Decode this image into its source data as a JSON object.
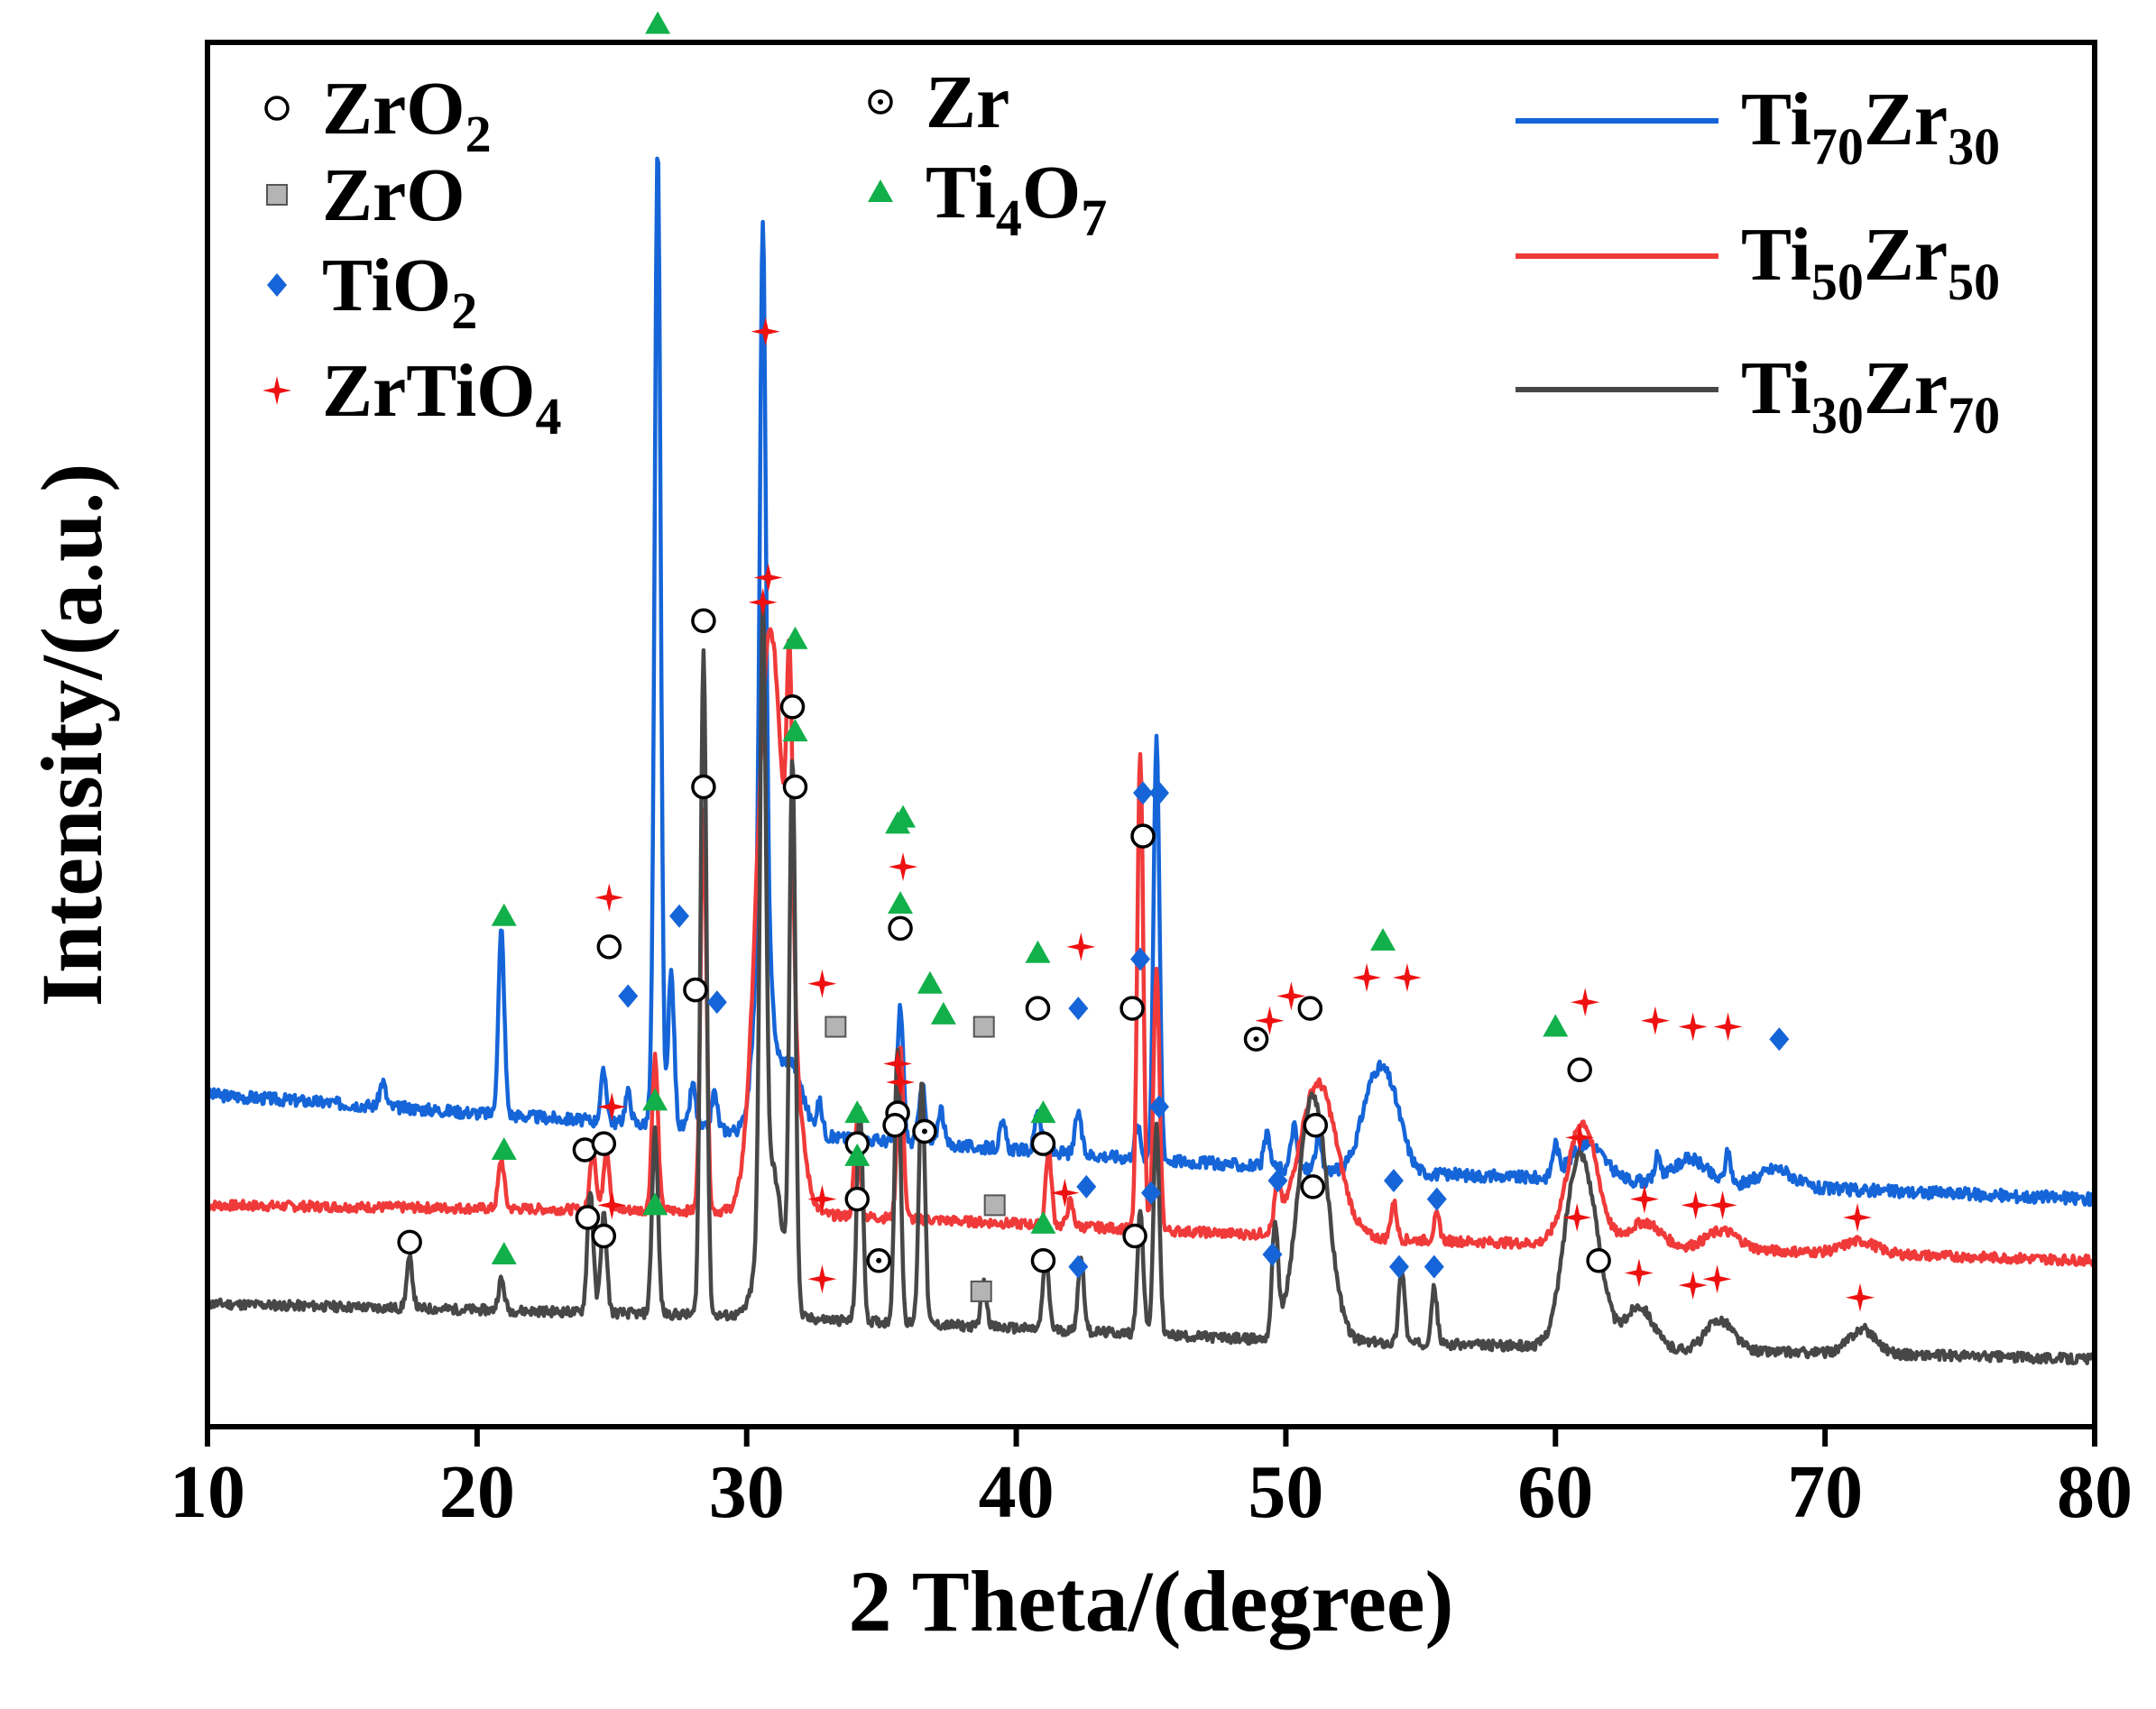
{
  "chart_data": {
    "type": "line",
    "title": "",
    "xlabel": "2 Theta/(degree)",
    "ylabel": "Intensity/(a.u.)",
    "xlim": [
      10,
      80
    ],
    "xticks": [
      10,
      20,
      30,
      40,
      50,
      60,
      70,
      80
    ],
    "grid": false,
    "y_units": "arbitrary units (vertically offset traces)",
    "legend_lines": [
      {
        "base": "Ti",
        "n1": "70",
        "el2": "Zr",
        "n2": "30",
        "color": "#1565d8"
      },
      {
        "base": "Ti",
        "n1": "50",
        "el2": "Zr",
        "n2": "50",
        "color": "#f03a3a"
      },
      {
        "base": "Ti",
        "n1": "30",
        "el2": "Zr",
        "n2": "70",
        "color": "#474747"
      }
    ],
    "phase_legend": [
      {
        "symbol": "circle",
        "formula": "ZrO",
        "sub": "2",
        "color": "#000000"
      },
      {
        "symbol": "square",
        "formula": "ZrO",
        "sub": "",
        "color": "#a0a0a0"
      },
      {
        "symbol": "diamond",
        "formula": "TiO",
        "sub": "2",
        "color": "#1565d8"
      },
      {
        "symbol": "cross",
        "formula": "ZrTiO",
        "sub": "4",
        "color": "#ee1111"
      },
      {
        "symbol": "dotcircle",
        "formula": "Zr",
        "sub": "",
        "color": "#000000"
      },
      {
        "symbol": "triangle",
        "formula": "Ti",
        "mid": "4",
        "formula2": "O",
        "sub": "7",
        "color": "#12b04a"
      }
    ],
    "series": [
      {
        "name": "Ti70Zr30",
        "color": "#1565d8",
        "baseline": [
          [
            10,
            54
          ],
          [
            30,
            48
          ],
          [
            50,
            42
          ],
          [
            80,
            37
          ]
        ],
        "broad": [
          [
            30.6,
            0.3,
            35
          ],
          [
            31.6,
            0.45,
            12
          ],
          [
            53.2,
            0.45,
            12
          ],
          [
            53.9,
            0.45,
            11
          ],
          [
            61.2,
            0.6,
            6
          ],
          [
            65.0,
            0.6,
            4
          ],
          [
            68.2,
            0.6,
            3
          ]
        ],
        "peaks": [
          [
            16.5,
            4
          ],
          [
            20.9,
            30
          ],
          [
            24.7,
            8
          ],
          [
            25.6,
            5
          ],
          [
            26.5,
            4
          ],
          [
            26.7,
            158
          ],
          [
            27.2,
            25
          ],
          [
            28.0,
            7
          ],
          [
            28.8,
            6
          ],
          [
            30.6,
            112
          ],
          [
            32.7,
            5
          ],
          [
            35.7,
            22
          ],
          [
            36.5,
            10
          ],
          [
            37.2,
            6
          ],
          [
            39.5,
            4
          ],
          [
            40.8,
            7
          ],
          [
            42.3,
            7
          ],
          [
            44.5,
            5
          ],
          [
            45.2,
            68
          ],
          [
            49.3,
            5
          ],
          [
            50.3,
            7
          ],
          [
            51.2,
            5
          ],
          [
            60.0,
            5
          ],
          [
            63.8,
            4
          ],
          [
            66.4,
            5
          ]
        ],
        "noise_seed": 3,
        "noise_amp": 1.0
      },
      {
        "name": "Ti50Zr50",
        "color": "#f03a3a",
        "baseline": [
          [
            10,
            36
          ],
          [
            30,
            35
          ],
          [
            50,
            31
          ],
          [
            80,
            27
          ]
        ],
        "broad": [
          [
            30.8,
            0.45,
            85
          ],
          [
            31.5,
            0.45,
            28
          ],
          [
            51.2,
            0.7,
            25
          ],
          [
            61.0,
            0.55,
            20
          ],
          [
            63.3,
            0.6,
            4
          ],
          [
            66.2,
            0.6,
            3
          ],
          [
            71.3,
            0.6,
            2
          ]
        ],
        "peaks": [
          [
            20.9,
            8
          ],
          [
            24.3,
            10
          ],
          [
            24.8,
            10
          ],
          [
            26.6,
            25
          ],
          [
            28.4,
            65
          ],
          [
            31.6,
            48
          ],
          [
            34.1,
            15
          ],
          [
            35.7,
            28
          ],
          [
            41.2,
            12
          ],
          [
            42.0,
            4
          ],
          [
            44.6,
            78
          ],
          [
            45.2,
            42
          ],
          [
            49.7,
            7
          ],
          [
            54.0,
            6
          ],
          [
            55.6,
            4
          ]
        ],
        "noise_seed": 7,
        "noise_amp": 0.8
      },
      {
        "name": "Ti30Zr70",
        "color": "#474747",
        "baseline": [
          [
            10,
            20
          ],
          [
            30,
            18
          ],
          [
            50,
            14
          ],
          [
            80,
            11
          ]
        ],
        "broad": [
          [
            30.9,
            0.4,
            25
          ],
          [
            51.0,
            0.55,
            40
          ],
          [
            60.8,
            0.5,
            28
          ],
          [
            61.5,
            0.45,
            10
          ],
          [
            63.1,
            0.5,
            7
          ],
          [
            66.1,
            0.5,
            5
          ],
          [
            71.4,
            0.5,
            4
          ]
        ],
        "peaks": [
          [
            17.5,
            8
          ],
          [
            20.9,
            5
          ],
          [
            24.2,
            20
          ],
          [
            24.7,
            16
          ],
          [
            26.6,
            30
          ],
          [
            28.4,
            108
          ],
          [
            30.6,
            98
          ],
          [
            31.7,
            88
          ],
          [
            34.2,
            35
          ],
          [
            35.6,
            45
          ],
          [
            36.5,
            40
          ],
          [
            38.8,
            7
          ],
          [
            41.1,
            12
          ],
          [
            42.4,
            12
          ],
          [
            44.6,
            20
          ],
          [
            45.2,
            34
          ],
          [
            49.6,
            18
          ],
          [
            54.3,
            12
          ],
          [
            55.5,
            9
          ]
        ],
        "noise_seed": 11,
        "noise_amp": 0.8
      }
    ],
    "y_range": [
      0,
      225
    ],
    "markers": [
      {
        "s": "triangle",
        "x": 21.0,
        "y": 83
      },
      {
        "s": "cross",
        "x": 24.9,
        "y": 86
      },
      {
        "s": "circle",
        "x": 24.9,
        "y": 78
      },
      {
        "s": "diamond",
        "x": 25.6,
        "y": 70
      },
      {
        "s": "triangle",
        "x": 26.7,
        "y": 228
      },
      {
        "s": "diamond",
        "x": 27.5,
        "y": 83
      },
      {
        "s": "circle",
        "x": 28.1,
        "y": 71
      },
      {
        "s": "diamond",
        "x": 28.9,
        "y": 69
      },
      {
        "s": "cross",
        "x": 30.7,
        "y": 178
      },
      {
        "s": "cross",
        "x": 32.8,
        "y": 72
      },
      {
        "s": "square",
        "x": 33.3,
        "y": 65
      },
      {
        "s": "circle",
        "x": 35.7,
        "y": 81
      },
      {
        "s": "cross",
        "x": 35.8,
        "y": 91
      },
      {
        "s": "triangle",
        "x": 35.8,
        "y": 99
      },
      {
        "s": "triangle",
        "x": 36.8,
        "y": 72
      },
      {
        "s": "triangle",
        "x": 37.3,
        "y": 67
      },
      {
        "s": "square",
        "x": 38.8,
        "y": 65
      },
      {
        "s": "circle",
        "x": 40.8,
        "y": 68
      },
      {
        "s": "triangle",
        "x": 40.8,
        "y": 77
      },
      {
        "s": "diamond",
        "x": 42.3,
        "y": 68
      },
      {
        "s": "cross",
        "x": 42.4,
        "y": 78
      },
      {
        "s": "circle",
        "x": 44.3,
        "y": 68
      },
      {
        "s": "diamond",
        "x": 44.6,
        "y": 76
      },
      {
        "s": "diamond",
        "x": 45.3,
        "y": 103
      },
      {
        "s": "cross",
        "x": 49.4,
        "y": 66
      },
      {
        "s": "cross",
        "x": 50.2,
        "y": 70
      },
      {
        "s": "circle",
        "x": 50.9,
        "y": 68
      },
      {
        "s": "cross",
        "x": 53.0,
        "y": 73
      },
      {
        "s": "triangle",
        "x": 53.6,
        "y": 79
      },
      {
        "s": "cross",
        "x": 54.5,
        "y": 73
      },
      {
        "s": "triangle",
        "x": 60.0,
        "y": 65
      },
      {
        "s": "cross",
        "x": 61.1,
        "y": 69
      },
      {
        "s": "cross",
        "x": 63.7,
        "y": 66
      },
      {
        "s": "cross",
        "x": 65.1,
        "y": 65
      },
      {
        "s": "cross",
        "x": 66.4,
        "y": 65
      },
      {
        "s": "diamond",
        "x": 68.3,
        "y": 63
      },
      {
        "s": "cross",
        "x": 30.8,
        "y": 138
      },
      {
        "s": "triangle",
        "x": 21.0,
        "y": 45
      },
      {
        "s": "circle",
        "x": 24.0,
        "y": 45
      },
      {
        "s": "circle",
        "x": 24.7,
        "y": 46
      },
      {
        "s": "cross",
        "x": 25.0,
        "y": 52
      },
      {
        "s": "triangle",
        "x": 26.6,
        "y": 53
      },
      {
        "s": "circle",
        "x": 28.4,
        "y": 104
      },
      {
        "s": "circle",
        "x": 31.8,
        "y": 104
      },
      {
        "s": "triangle",
        "x": 31.8,
        "y": 113
      },
      {
        "s": "cross",
        "x": 32.8,
        "y": 37
      },
      {
        "s": "circle",
        "x": 34.1,
        "y": 46
      },
      {
        "s": "triangle",
        "x": 34.1,
        "y": 51
      },
      {
        "s": "circle",
        "x": 35.6,
        "y": 51
      },
      {
        "s": "cross",
        "x": 35.6,
        "y": 59
      },
      {
        "s": "triangle",
        "x": 35.6,
        "y": 98
      },
      {
        "s": "square",
        "x": 39.2,
        "y": 36
      },
      {
        "s": "circle",
        "x": 41.0,
        "y": 46
      },
      {
        "s": "triangle",
        "x": 41.0,
        "y": 51
      },
      {
        "s": "cross",
        "x": 41.8,
        "y": 38
      },
      {
        "s": "diamond",
        "x": 42.6,
        "y": 39
      },
      {
        "s": "circle",
        "x": 44.7,
        "y": 96
      },
      {
        "s": "diamond",
        "x": 44.7,
        "y": 103
      },
      {
        "s": "diamond",
        "x": 45.3,
        "y": 52
      },
      {
        "s": "diamond",
        "x": 49.7,
        "y": 40
      },
      {
        "s": "circle",
        "x": 51.1,
        "y": 49
      },
      {
        "s": "diamond",
        "x": 54.0,
        "y": 40
      },
      {
        "s": "diamond",
        "x": 55.6,
        "y": 37
      },
      {
        "s": "circle",
        "x": 60.9,
        "y": 58
      },
      {
        "s": "cross",
        "x": 60.9,
        "y": 47
      },
      {
        "s": "cross",
        "x": 63.3,
        "y": 37
      },
      {
        "s": "cross",
        "x": 65.2,
        "y": 36
      },
      {
        "s": "cross",
        "x": 66.2,
        "y": 36
      },
      {
        "s": "cross",
        "x": 71.2,
        "y": 34
      },
      {
        "s": "circle",
        "x": 17.5,
        "y": 30
      },
      {
        "s": "triangle",
        "x": 21.0,
        "y": 28
      },
      {
        "s": "circle",
        "x": 24.1,
        "y": 34
      },
      {
        "s": "circle",
        "x": 24.7,
        "y": 31
      },
      {
        "s": "cross",
        "x": 25.0,
        "y": 36
      },
      {
        "s": "triangle",
        "x": 26.6,
        "y": 36
      },
      {
        "s": "circle",
        "x": 28.4,
        "y": 131
      },
      {
        "s": "cross",
        "x": 30.6,
        "y": 134
      },
      {
        "s": "circle",
        "x": 31.7,
        "y": 117
      },
      {
        "s": "triangle",
        "x": 31.8,
        "y": 128
      },
      {
        "s": "cross",
        "x": 32.8,
        "y": 24
      },
      {
        "s": "circle",
        "x": 34.1,
        "y": 37
      },
      {
        "s": "triangle",
        "x": 34.1,
        "y": 44
      },
      {
        "s": "circle",
        "x": 35.5,
        "y": 49
      },
      {
        "s": "cross",
        "x": 35.7,
        "y": 56
      },
      {
        "s": "triangle",
        "x": 35.7,
        "y": 85
      },
      {
        "s": "dotcircle",
        "x": 36.6,
        "y": 48
      },
      {
        "s": "dotcircle",
        "x": 34.9,
        "y": 27
      },
      {
        "s": "square",
        "x": 38.7,
        "y": 22
      },
      {
        "s": "circle",
        "x": 41.0,
        "y": 27
      },
      {
        "s": "triangle",
        "x": 41.0,
        "y": 33
      },
      {
        "s": "diamond",
        "x": 42.3,
        "y": 26
      },
      {
        "s": "circle",
        "x": 44.4,
        "y": 31
      },
      {
        "s": "diamond",
        "x": 45.0,
        "y": 38
      },
      {
        "s": "dotcircle",
        "x": 48.9,
        "y": 63
      },
      {
        "s": "diamond",
        "x": 49.5,
        "y": 28
      },
      {
        "s": "circle",
        "x": 51.0,
        "y": 39
      },
      {
        "s": "diamond",
        "x": 54.2,
        "y": 26
      },
      {
        "s": "diamond",
        "x": 55.5,
        "y": 26
      },
      {
        "s": "cross",
        "x": 60.8,
        "y": 34
      },
      {
        "s": "circle",
        "x": 61.6,
        "y": 27
      },
      {
        "s": "cross",
        "x": 63.1,
        "y": 25
      },
      {
        "s": "cross",
        "x": 65.1,
        "y": 23
      },
      {
        "s": "cross",
        "x": 66.0,
        "y": 24
      },
      {
        "s": "cross",
        "x": 71.3,
        "y": 21
      }
    ]
  }
}
